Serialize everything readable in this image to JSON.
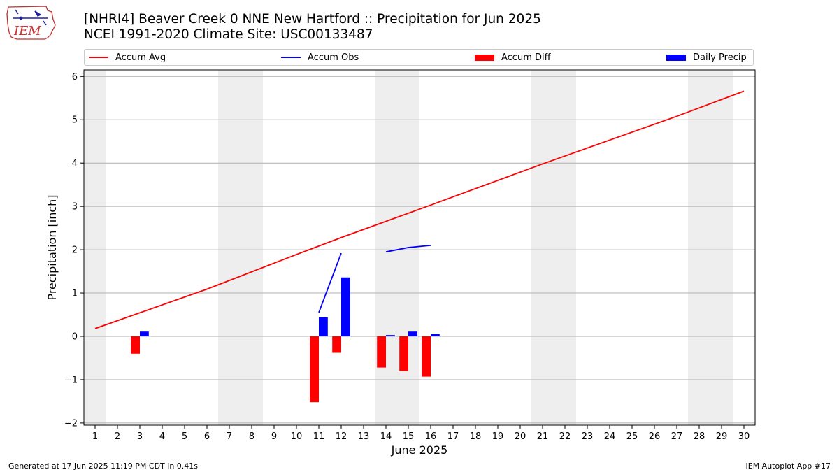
{
  "header": {
    "logo_text": "IEM",
    "title_line1": "[NHRI4] Beaver Creek 0 NNE New Hartford :: Precipitation for Jun 2025",
    "title_line2": "NCEI 1991-2020 Climate Site: USC00133487"
  },
  "legend": {
    "placement": "top",
    "items": [
      {
        "label": "Accum Avg",
        "kind": "line",
        "color": "#ff0000"
      },
      {
        "label": "Accum Obs",
        "kind": "line",
        "color": "#0000ff"
      },
      {
        "label": "Accum Diff",
        "kind": "bar",
        "color": "#ff0000"
      },
      {
        "label": "Daily Precip",
        "kind": "bar",
        "color": "#0000ff"
      }
    ]
  },
  "colors": {
    "avg": "#ff0000",
    "obs": "#0000ff",
    "diff": "#ff0000",
    "daily": "#0000ff",
    "weekend_band": "#eeeeee",
    "grid": "#b0b0b0"
  },
  "chart_data": {
    "type": "bar",
    "xlabel": "June 2025",
    "ylabel": "Precipitation [inch]",
    "xlim": [
      0.5,
      30.5
    ],
    "ylim": [
      -2.05,
      6.15
    ],
    "yticks": [
      -2,
      -1,
      0,
      1,
      2,
      3,
      4,
      5,
      6
    ],
    "ytick_labels": [
      "−2",
      "−1",
      "0",
      "1",
      "2",
      "3",
      "4",
      "5",
      "6"
    ],
    "xticks": [
      1,
      2,
      3,
      4,
      5,
      6,
      7,
      8,
      9,
      10,
      11,
      12,
      13,
      14,
      15,
      16,
      17,
      18,
      19,
      20,
      21,
      22,
      23,
      24,
      25,
      26,
      27,
      28,
      29,
      30
    ],
    "grid": "horizontal",
    "weekend_bands": [
      [
        0.5,
        1.5
      ],
      [
        6.5,
        8.5
      ],
      [
        13.5,
        15.5
      ],
      [
        20.5,
        22.5
      ],
      [
        27.5,
        29.5
      ]
    ],
    "series": [
      {
        "name": "Accum Avg",
        "type": "line",
        "x": [
          1,
          6,
          10,
          12,
          16,
          21,
          27,
          30
        ],
        "y": [
          0.18,
          1.09,
          1.89,
          2.28,
          3.03,
          3.98,
          5.08,
          5.66
        ]
      },
      {
        "name": "Accum Obs",
        "type": "line",
        "segments": [
          {
            "x": [
              11,
              12
            ],
            "y": [
              0.55,
              1.92
            ]
          },
          {
            "x": [
              14,
              15,
              16
            ],
            "y": [
              1.95,
              2.05,
              2.1
            ]
          }
        ]
      },
      {
        "name": "Accum Diff",
        "type": "bar",
        "x": [
          3,
          11,
          12,
          14,
          15,
          16
        ],
        "values": [
          -0.4,
          -1.52,
          -0.38,
          -0.72,
          -0.8,
          -0.93
        ]
      },
      {
        "name": "Daily Precip",
        "type": "bar",
        "x": [
          3,
          11,
          12,
          14,
          15,
          16
        ],
        "values": [
          0.11,
          0.44,
          1.36,
          0.03,
          0.11,
          0.05
        ]
      }
    ]
  },
  "footer": {
    "left": "Generated at 17 Jun 2025 11:19 PM CDT in 0.41s",
    "right": "IEM Autoplot App #17"
  }
}
